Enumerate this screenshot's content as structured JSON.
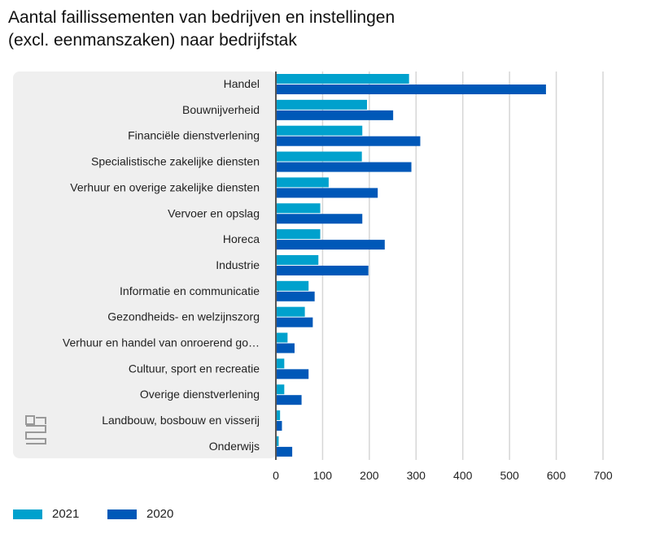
{
  "chart_data": {
    "type": "bar",
    "orientation": "horizontal",
    "title": "Aantal faillissementen van bedrijven en instellingen\n(excl. eenmanszaken) naar bedrijfstak",
    "categories": [
      "Handel",
      "Bouwnijverheid",
      "Financiële dienstverlening",
      "Specialistische zakelijke diensten",
      "Verhuur en overige zakelijke diensten",
      "Vervoer en opslag",
      "Horeca",
      "Industrie",
      "Informatie en communicatie",
      "Gezondheids- en welzijnszorg",
      "Verhuur en handel van onroerend go…",
      "Cultuur, sport en recreatie",
      "Overige dienstverlening",
      "Landbouw, bosbouw en visserij",
      "Onderwijs"
    ],
    "series": [
      {
        "name": "2021",
        "color": "#00a1cd",
        "values": [
          285,
          195,
          185,
          184,
          113,
          95,
          95,
          91,
          70,
          62,
          25,
          18,
          18,
          9,
          6
        ]
      },
      {
        "name": "2020",
        "color": "#0058b8",
        "values": [
          578,
          251,
          309,
          290,
          218,
          185,
          233,
          198,
          83,
          79,
          40,
          70,
          55,
          13,
          35
        ]
      }
    ],
    "xlim": [
      0,
      700
    ],
    "xticks": [
      "0",
      "100",
      "200",
      "300",
      "400",
      "500",
      "600",
      "700"
    ],
    "grid": true,
    "legend": "bottom-left"
  }
}
